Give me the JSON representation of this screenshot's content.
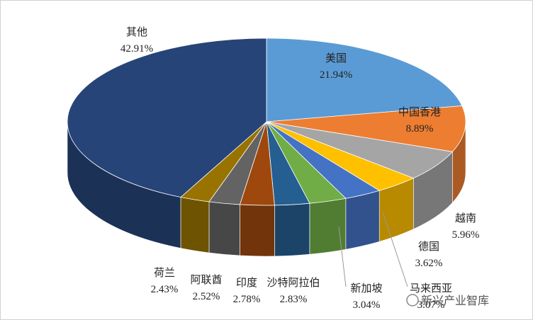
{
  "chart_data": {
    "type": "pie",
    "categories": [
      "美国",
      "中国香港",
      "越南",
      "德国",
      "马来西亚",
      "新加坡",
      "沙特阿拉伯",
      "印度",
      "阿联酋",
      "荷兰",
      "其他"
    ],
    "values": [
      21.94,
      8.89,
      5.96,
      3.62,
      3.07,
      3.04,
      2.83,
      2.78,
      2.52,
      2.43,
      42.91
    ],
    "value_labels": [
      "21.94%",
      "8.89%",
      "5.96%",
      "3.62%",
      "3.07%",
      "3.04%",
      "2.83%",
      "2.78%",
      "2.52%",
      "2.43%",
      "42.91%"
    ],
    "colors": [
      "#5b9bd5",
      "#ed7d31",
      "#a5a5a5",
      "#ffc000",
      "#4472c4",
      "#70ad47",
      "#255e91",
      "#9e480e",
      "#636363",
      "#997300",
      "#264478"
    ],
    "watermark": "新兴产业智库"
  }
}
